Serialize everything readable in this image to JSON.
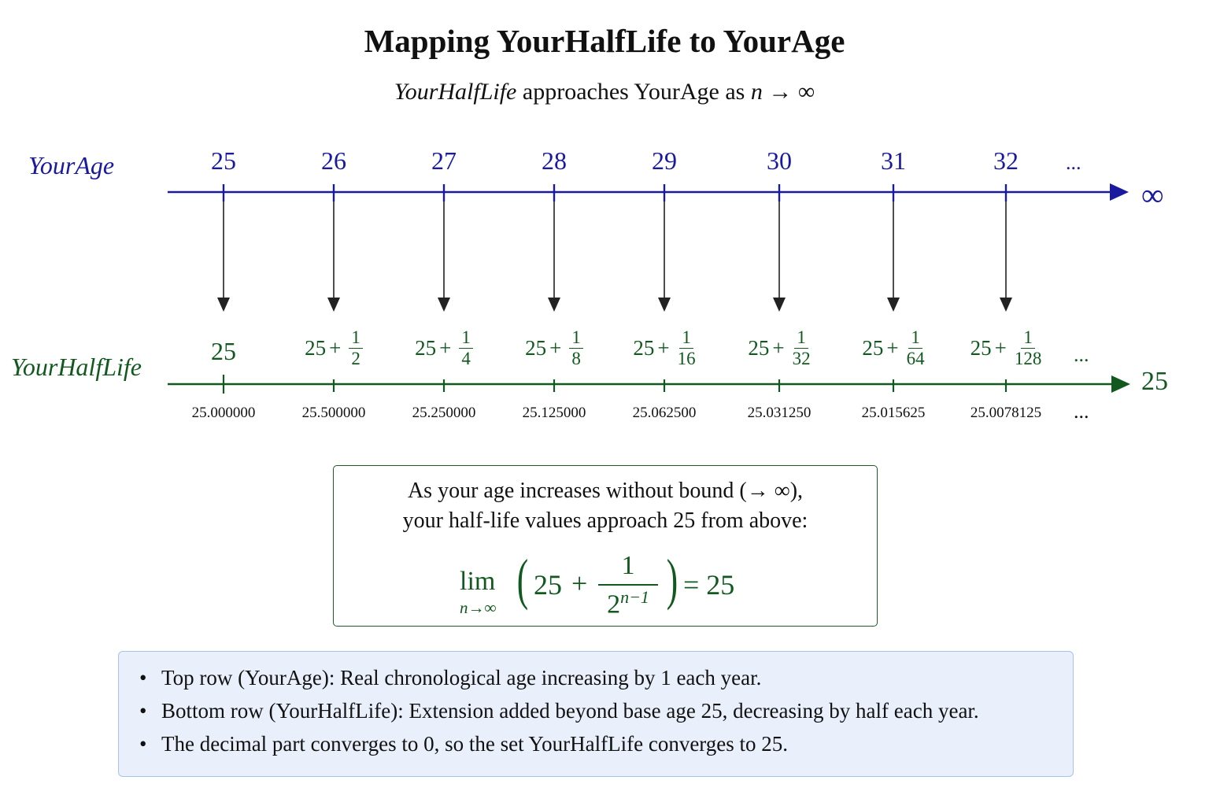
{
  "title": "Mapping YourHalfLife to YourAge",
  "subtitle": {
    "italic_part": "YourHalfLife",
    "rest": " approaches YourAge as ",
    "var": "n",
    "arrow": " → ∞"
  },
  "age_row": {
    "label": "YourAge",
    "ticks": [
      "25",
      "26",
      "27",
      "28",
      "29",
      "30",
      "31",
      "32"
    ],
    "ellipsis": "...",
    "end": "∞",
    "color": "#1a1a9e"
  },
  "halflife_row": {
    "label": "YourHalfLife",
    "base": "25",
    "terms": [
      {
        "base": "25",
        "plus": "+",
        "num": "1",
        "den": "2"
      },
      {
        "base": "25",
        "plus": "+",
        "num": "1",
        "den": "4"
      },
      {
        "base": "25",
        "plus": "+",
        "num": "1",
        "den": "8"
      },
      {
        "base": "25",
        "plus": "+",
        "num": "1",
        "den": "16"
      },
      {
        "base": "25",
        "plus": "+",
        "num": "1",
        "den": "32"
      },
      {
        "base": "25",
        "plus": "+",
        "num": "1",
        "den": "64"
      },
      {
        "base": "25",
        "plus": "+",
        "num": "1",
        "den": "128"
      }
    ],
    "ellipsis": "...",
    "end": "25",
    "color": "#11591f"
  },
  "decimals": [
    "25.000000",
    "25.500000",
    "25.250000",
    "25.125000",
    "25.062500",
    "25.031250",
    "25.015625",
    "25.0078125"
  ],
  "decimals_ellipsis": "...",
  "limit_box": {
    "line1": "As your age increases without bound (→ ∞),",
    "line2": "your half-life values approach 25 from above:",
    "lim": "lim",
    "sub": "n→∞",
    "lparen": "(",
    "rparen": ")",
    "base": "25",
    "plus": "+",
    "num": "1",
    "den_base": "2",
    "den_exp": "n−1",
    "equals": "= 25"
  },
  "notes": [
    "Top row (YourAge): Real chronological age increasing by 1 each year.",
    "Bottom row (YourHalfLife): Extension added beyond base age 25, decreasing by half each year.",
    "The decimal part converges to 0, so the set YourHalfLife converges to 25."
  ],
  "bullet": "•"
}
